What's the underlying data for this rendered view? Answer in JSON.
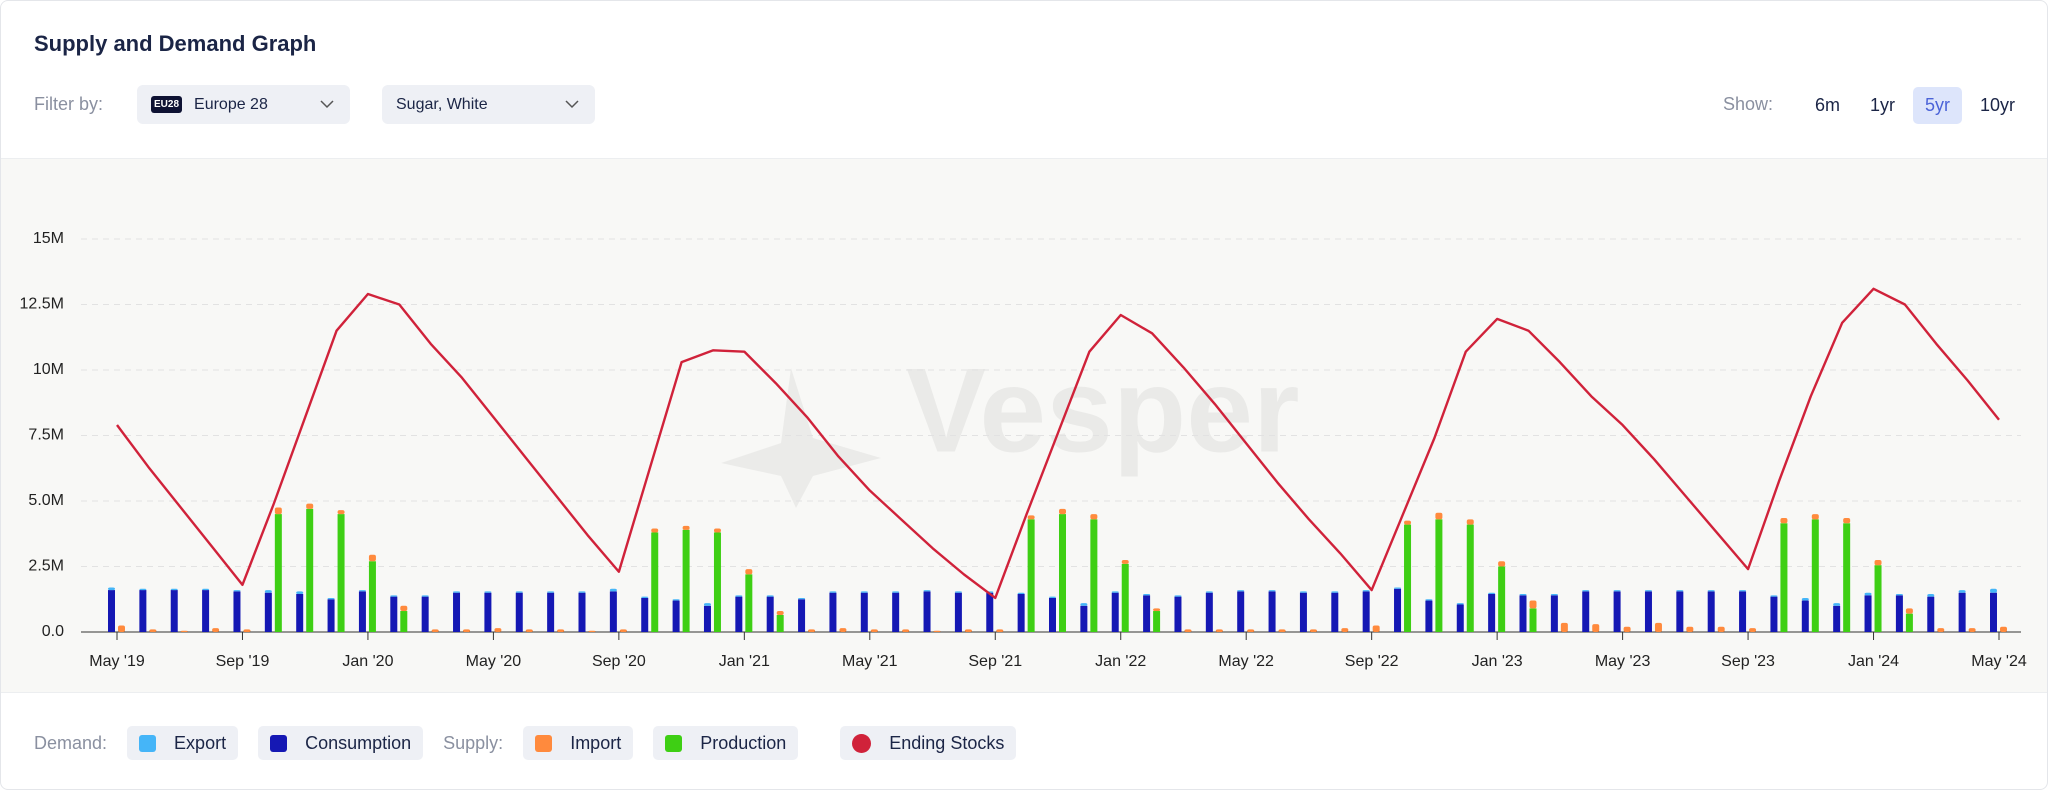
{
  "header": {
    "filter_label": "Filter by:",
    "region_badge": "EU28",
    "filters": [
      "Europe 28",
      "Sugar, White"
    ],
    "show_label": "Show:",
    "ranges": [
      {
        "label": "6m",
        "active": false
      },
      {
        "label": "1yr",
        "active": false
      },
      {
        "label": "5yr",
        "active": true
      },
      {
        "label": "10yr",
        "active": false
      }
    ]
  },
  "watermark": "Vesper",
  "chart_data": {
    "type": "bar",
    "title": "Supply and Demand Graph",
    "categories": [
      "May '19",
      null,
      null,
      null,
      "Sep '19",
      null,
      null,
      null,
      "Jan '20",
      null,
      null,
      null,
      "May '20",
      null,
      null,
      null,
      "Sep '20",
      null,
      null,
      null,
      "Jan '21",
      null,
      null,
      null,
      "May '21",
      null,
      null,
      null,
      "Sep '21",
      null,
      null,
      null,
      "Jan '22",
      null,
      null,
      null,
      "May '22",
      null,
      null,
      null,
      "Sep '22",
      null,
      null,
      null,
      "Jan '23",
      null,
      null,
      null,
      "May '23",
      null,
      null,
      null,
      "Sep '23",
      null,
      null,
      null,
      "Jan '24",
      null,
      null,
      null,
      "May '24"
    ],
    "ylim": [
      0,
      17.5
    ],
    "yticks": [
      {
        "value": 0,
        "label": "0.0"
      },
      {
        "value": 2.5,
        "label": "2.5M"
      },
      {
        "value": 5,
        "label": "5.0M"
      },
      {
        "value": 7.5,
        "label": "7.5M"
      },
      {
        "value": 10,
        "label": "10M"
      },
      {
        "value": 12.5,
        "label": "12.5M"
      },
      {
        "value": 15,
        "label": "15M"
      }
    ],
    "grid": true,
    "groups": [
      {
        "label": "Demand:",
        "series": [
          {
            "name": "Export",
            "color": "#45b5f8",
            "values": [
              0.1,
              0.05,
              0.05,
              0.05,
              0.05,
              0.1,
              0.1,
              0.05,
              0.05,
              0.05,
              0.05,
              0.05,
              0.05,
              0.05,
              0.05,
              0.05,
              0.1,
              0.05,
              0.05,
              0.1,
              0.05,
              0.05,
              0.05,
              0.05,
              0.05,
              0.05,
              0.05,
              0.05,
              0.05,
              0.05,
              0.05,
              0.1,
              0.05,
              0.05,
              0.05,
              0.05,
              0.05,
              0.05,
              0.05,
              0.05,
              0.05,
              0.05,
              0.05,
              0.05,
              0.05,
              0.05,
              0.05,
              0.05,
              0.05,
              0.05,
              0.05,
              0.05,
              0.05,
              0.05,
              0.1,
              0.1,
              0.1,
              0.05,
              0.1,
              0.1,
              0.15
            ]
          },
          {
            "name": "Consumption",
            "color": "#1518b4",
            "values": [
              1.6,
              1.6,
              1.6,
              1.6,
              1.55,
              1.5,
              1.45,
              1.25,
              1.55,
              1.35,
              1.35,
              1.5,
              1.5,
              1.5,
              1.5,
              1.5,
              1.55,
              1.3,
              1.2,
              1.0,
              1.35,
              1.35,
              1.25,
              1.5,
              1.5,
              1.5,
              1.55,
              1.5,
              1.5,
              1.45,
              1.3,
              1.0,
              1.5,
              1.4,
              1.35,
              1.5,
              1.55,
              1.55,
              1.5,
              1.5,
              1.55,
              1.65,
              1.2,
              1.05,
              1.45,
              1.4,
              1.4,
              1.55,
              1.55,
              1.55,
              1.55,
              1.55,
              1.55,
              1.35,
              1.2,
              1.0,
              1.4,
              1.4,
              1.35,
              1.5,
              1.5
            ]
          }
        ]
      },
      {
        "label": "Supply:",
        "series": [
          {
            "name": "Import",
            "color": "#ff8a3d",
            "values": [
              0.25,
              0.1,
              0.05,
              0.15,
              0.1,
              0.25,
              0.2,
              0.15,
              0.25,
              0.2,
              0.1,
              0.1,
              0.15,
              0.1,
              0.1,
              0.05,
              0.1,
              0.15,
              0.15,
              0.15,
              0.2,
              0.15,
              0.1,
              0.15,
              0.1,
              0.1,
              0.05,
              0.1,
              0.1,
              0.15,
              0.2,
              0.2,
              0.15,
              0.1,
              0.1,
              0.1,
              0.1,
              0.1,
              0.1,
              0.15,
              0.25,
              0.15,
              0.25,
              0.2,
              0.2,
              0.3,
              0.35,
              0.3,
              0.2,
              0.35,
              0.2,
              0.2,
              0.15,
              0.2,
              0.2,
              0.2,
              0.2,
              0.2,
              0.15,
              0.15,
              0.2
            ]
          },
          {
            "name": "Production",
            "color": "#3ecf14",
            "values": [
              0,
              0,
              0,
              0,
              0,
              4.5,
              4.7,
              4.5,
              2.7,
              0.8,
              0,
              0,
              0,
              0,
              0,
              0,
              0,
              3.8,
              3.9,
              3.8,
              2.2,
              0.65,
              0,
              0,
              0,
              0,
              0,
              0,
              0,
              4.3,
              4.5,
              4.3,
              2.6,
              0.8,
              0,
              0,
              0,
              0,
              0,
              0,
              0,
              4.1,
              4.3,
              4.1,
              2.5,
              0.9,
              0,
              0,
              0,
              0,
              0,
              0,
              0,
              4.15,
              4.3,
              4.15,
              2.55,
              0.7,
              0,
              0,
              0
            ]
          }
        ]
      }
    ],
    "line": {
      "type": "line",
      "name": "Ending Stocks",
      "color": "#d0223a",
      "values": [
        7.9,
        6.3,
        4.8,
        3.3,
        1.8,
        4.9,
        8.2,
        11.5,
        12.9,
        12.5,
        11.0,
        9.7,
        8.2,
        6.7,
        5.2,
        3.7,
        2.3,
        6.3,
        10.3,
        10.75,
        10.7,
        9.5,
        8.2,
        6.7,
        5.4,
        4.3,
        3.2,
        2.2,
        1.3,
        4.5,
        7.6,
        10.7,
        12.1,
        11.4,
        10.1,
        8.7,
        7.2,
        5.7,
        4.3,
        3.0,
        1.6,
        4.5,
        7.4,
        10.7,
        11.95,
        11.5,
        10.3,
        9.0,
        7.9,
        6.6,
        5.2,
        3.8,
        2.4,
        5.8,
        9.0,
        11.8,
        13.1,
        12.5,
        11.0,
        9.6,
        8.1
      ]
    }
  }
}
